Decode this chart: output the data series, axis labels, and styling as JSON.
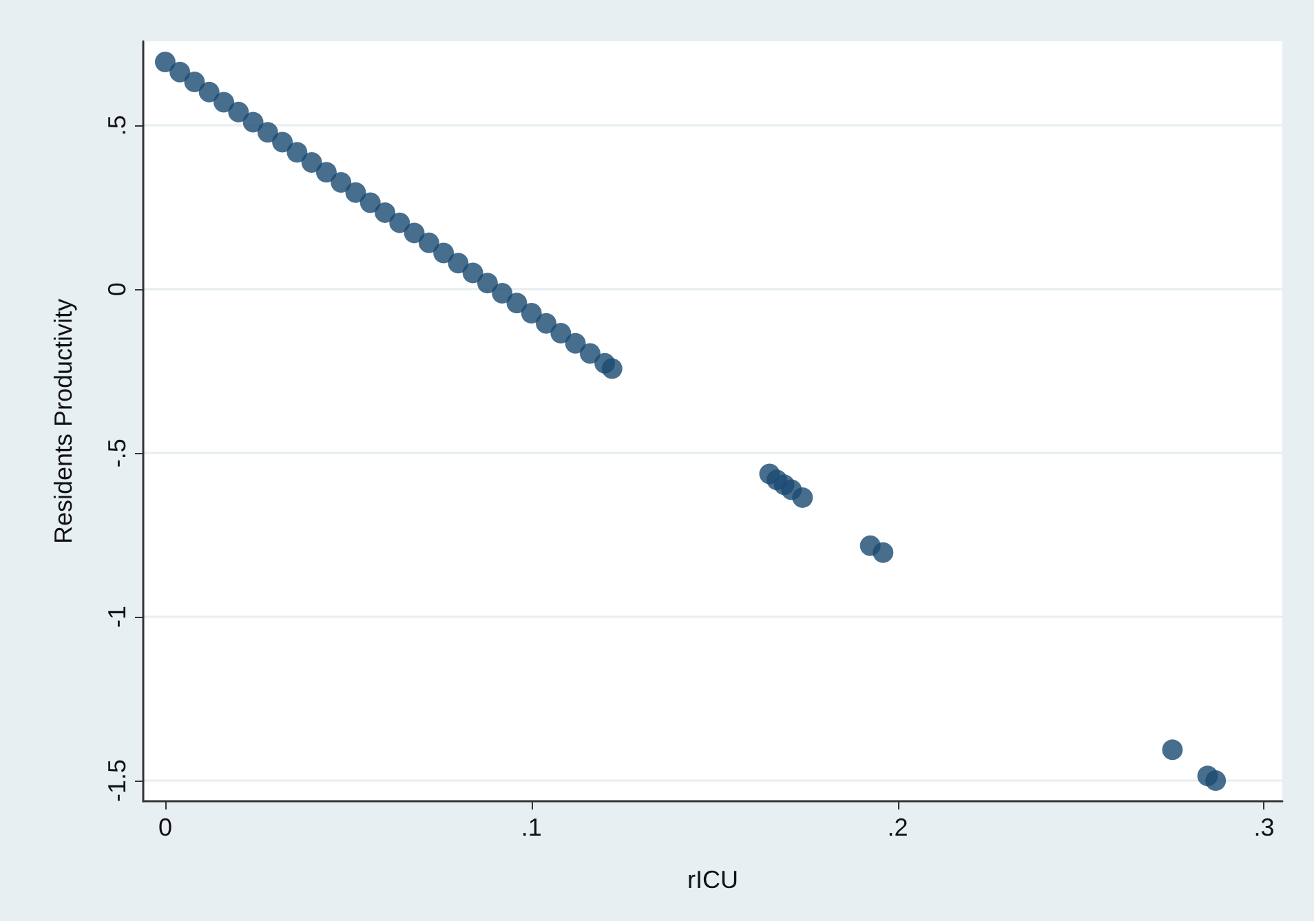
{
  "chart_data": {
    "type": "scatter",
    "xlabel": "rICU",
    "ylabel": "Residents Productivity",
    "x": [
      0,
      0.004,
      0.008,
      0.012,
      0.016,
      0.02,
      0.024,
      0.028,
      0.032,
      0.036,
      0.04,
      0.044,
      0.048,
      0.052,
      0.056,
      0.06,
      0.064,
      0.068,
      0.072,
      0.076,
      0.08,
      0.084,
      0.088,
      0.092,
      0.096,
      0.1,
      0.104,
      0.108,
      0.112,
      0.116,
      0.12,
      0.122,
      0.165,
      0.167,
      0.169,
      0.171,
      0.174,
      0.1925,
      0.196,
      0.275,
      0.2846,
      0.2868
    ],
    "values": [
      0.694,
      0.663,
      0.633,
      0.602,
      0.571,
      0.541,
      0.51,
      0.479,
      0.449,
      0.418,
      0.387,
      0.357,
      0.326,
      0.295,
      0.264,
      0.234,
      0.203,
      0.172,
      0.142,
      0.111,
      0.08,
      0.05,
      0.019,
      -0.012,
      -0.042,
      -0.073,
      -0.104,
      -0.134,
      -0.165,
      -0.196,
      -0.226,
      -0.242,
      -0.564,
      -0.582,
      -0.597,
      -0.612,
      -0.636,
      -0.783,
      -0.804,
      -1.406,
      -1.486,
      -1.5
    ],
    "color": "#1a4a72",
    "marker": "circle",
    "xlim": [
      -0.006,
      0.305
    ],
    "ylim": [
      -1.563,
      0.757
    ],
    "xticks": [
      0,
      {
        "value": 0.1,
        "label": ".1"
      },
      {
        "value": 0.2,
        "label": ".2"
      },
      {
        "value": 0.3,
        "label": ".3"
      }
    ],
    "yticks": [
      {
        "value": -1.5,
        "label": "-1.5"
      },
      {
        "value": -1,
        "label": "-1"
      },
      {
        "value": -0.5,
        "label": "-.5"
      },
      0,
      {
        "value": 0.5,
        "label": ".5"
      }
    ],
    "grid": "y"
  }
}
